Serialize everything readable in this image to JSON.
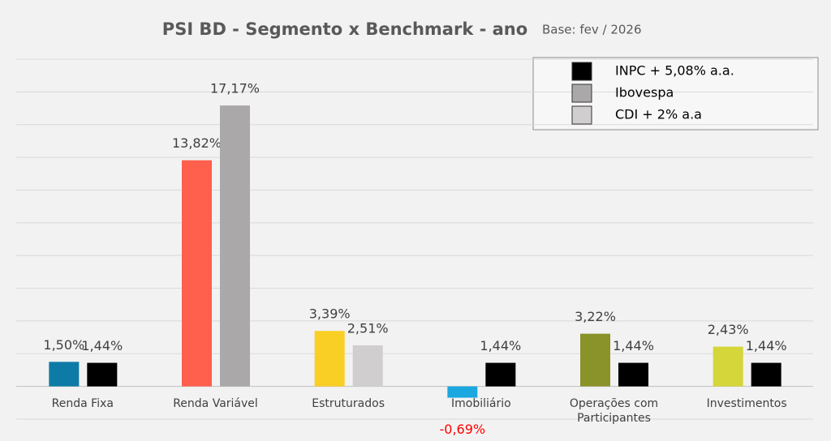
{
  "chart_data": {
    "type": "bar",
    "title": "PSI BD - Segmento x Benchmark - ano",
    "subtitle": "Base: fev / 2026",
    "categories": [
      "Renda Fixa",
      "Renda Variável",
      "Estruturados",
      "Imobiliário",
      "Operações com Participantes",
      "Investimentos"
    ],
    "series": [
      {
        "colors": [
          "#0e7ba6",
          "#ff5f4d",
          "#f9ce25",
          "#1ba8e0",
          "#8a922a",
          "#d4d63a"
        ],
        "values": [
          1.5,
          13.82,
          3.39,
          -0.69,
          3.22,
          2.43
        ],
        "value_labels": [
          "1,50%",
          "13,82%",
          "3,39%",
          "-0,69%",
          "3,22%",
          "2,43%"
        ]
      },
      {
        "colors": [
          "#000000",
          "#aaa8a8",
          "#d0cece",
          "#000000",
          "#000000",
          "#000000"
        ],
        "values": [
          1.44,
          17.17,
          2.51,
          1.44,
          1.44,
          1.44
        ],
        "value_labels": [
          "1,44%",
          "17,17%",
          "2,51%",
          "1,44%",
          "1,44%",
          "1,44%"
        ]
      }
    ],
    "legend": [
      {
        "label": "INPC + 5,08% a.a.",
        "color": "#000000"
      },
      {
        "label": "Ibovespa",
        "color": "#aaa8a8"
      },
      {
        "label": "CDI + 2% a.a",
        "color": "#d0cece"
      }
    ],
    "ylim": [
      -2,
      20
    ],
    "yticks": [
      -2,
      0,
      2,
      4,
      6,
      8,
      10,
      12,
      14,
      16,
      18,
      20
    ],
    "grid": true
  }
}
